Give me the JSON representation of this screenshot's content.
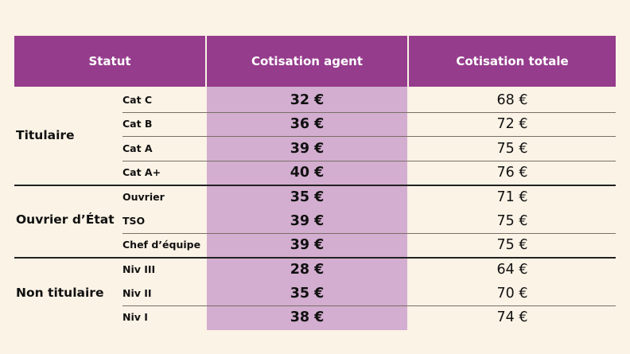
{
  "header": {
    "statut": "Statut",
    "cotisation_agent": "Cotisation agent",
    "cotisation_totale": "Cotisation totale"
  },
  "groups": [
    {
      "label": "Titulaire"
    },
    {
      "label": "Ouvrier d’État"
    },
    {
      "label": "Non titulaire"
    }
  ],
  "rows": [
    {
      "sub": "Cat C",
      "agent": "32 €",
      "total": "68 €"
    },
    {
      "sub": "Cat B",
      "agent": "36 €",
      "total": "72 €"
    },
    {
      "sub": "Cat A",
      "agent": "39 €",
      "total": "75 €"
    },
    {
      "sub": "Cat A+",
      "agent": "40 €",
      "total": "76 €"
    },
    {
      "sub": "Ouvrier",
      "agent": "35 €",
      "total": "71 €"
    },
    {
      "sub": "TSO",
      "agent": "39 €",
      "total": "75 €"
    },
    {
      "sub": "Chef d’équipe",
      "agent": "39 €",
      "total": "75 €"
    },
    {
      "sub": "Niv III",
      "agent": "28 €",
      "total": "64 €"
    },
    {
      "sub": "Niv II",
      "agent": "35 €",
      "total": "70 €"
    },
    {
      "sub": "Niv I",
      "agent": "38 €",
      "total": "74 €"
    }
  ],
  "colors": {
    "background": "#fbf3e6",
    "header": "#953c8c",
    "agent_column": "#d3aed0"
  }
}
